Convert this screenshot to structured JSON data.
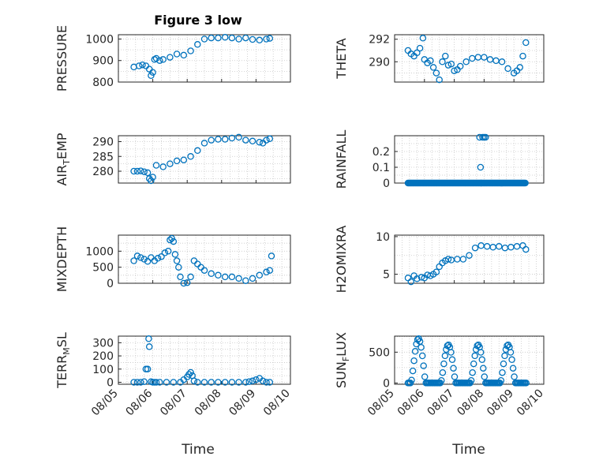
{
  "chart_data": {
    "type": "scatter",
    "title": "Figure 3 low",
    "colors": {
      "marker": "#0072bd",
      "axis": "#262626",
      "grid": "#c8c8c8"
    },
    "x_axis": {
      "label": "Time",
      "tick_labels": [
        "08/05",
        "08/06",
        "08/07",
        "08/08",
        "08/09",
        "08/10"
      ],
      "range_days": [
        0,
        5
      ],
      "note_units": "days after 08/05 00:00"
    },
    "subplots": [
      {
        "id": "pressure",
        "ylabel": "PRESSURE",
        "ylabel_sub": "",
        "ylim": [
          800,
          1020
        ],
        "yticks": [
          800,
          900,
          1000
        ],
        "ytick_labels": [
          "800",
          "900",
          "1000"
        ],
        "x": [
          0.45,
          0.6,
          0.7,
          0.8,
          0.9,
          0.95,
          1.0,
          1.05,
          1.1,
          1.2,
          1.3,
          1.5,
          1.7,
          1.9,
          2.1,
          2.3,
          2.5,
          2.7,
          2.9,
          3.1,
          3.3,
          3.5,
          3.7,
          3.9,
          4.1,
          4.3,
          4.4
        ],
        "y": [
          870,
          875,
          880,
          875,
          860,
          830,
          845,
          905,
          910,
          900,
          905,
          915,
          930,
          925,
          945,
          975,
          1000,
          1005,
          1005,
          1008,
          1005,
          1000,
          1005,
          998,
          995,
          1000,
          1003
        ]
      },
      {
        "id": "theta",
        "ylabel": "THETA",
        "ylabel_sub": "",
        "ylim": [
          288.2,
          292.4
        ],
        "yticks": [
          290,
          292
        ],
        "ytick_labels": [
          "290",
          "292"
        ],
        "x": [
          0.45,
          0.55,
          0.65,
          0.75,
          0.85,
          0.95,
          1.0,
          1.1,
          1.2,
          1.3,
          1.4,
          1.5,
          1.6,
          1.7,
          1.8,
          1.9,
          2.0,
          2.1,
          2.2,
          2.4,
          2.6,
          2.8,
          3.0,
          3.2,
          3.4,
          3.6,
          3.8,
          4.0,
          4.1,
          4.2,
          4.3,
          4.4
        ],
        "y": [
          291.0,
          290.7,
          290.5,
          290.8,
          291.2,
          292.1,
          290.2,
          289.9,
          290.1,
          289.5,
          289.0,
          288.4,
          290.0,
          290.5,
          289.7,
          289.8,
          289.2,
          289.3,
          289.6,
          290.0,
          290.3,
          290.4,
          290.4,
          290.2,
          290.1,
          290.0,
          289.4,
          289.0,
          289.2,
          289.5,
          290.5,
          291.7
        ]
      },
      {
        "id": "air_temp",
        "ylabel": "AIR",
        "ylabel_sub": "T",
        "ylabel_suffix": "EMP",
        "ylim": [
          276,
          292
        ],
        "yticks": [
          280,
          285,
          290
        ],
        "ytick_labels": [
          "280",
          "285",
          "290"
        ],
        "x": [
          0.45,
          0.55,
          0.65,
          0.75,
          0.85,
          0.9,
          0.95,
          1.0,
          1.1,
          1.3,
          1.5,
          1.7,
          1.9,
          2.1,
          2.3,
          2.5,
          2.7,
          2.9,
          3.1,
          3.3,
          3.5,
          3.7,
          3.9,
          4.1,
          4.2,
          4.3,
          4.4
        ],
        "y": [
          280.0,
          280.0,
          280.1,
          279.8,
          279.5,
          277.5,
          276.8,
          278.0,
          282.0,
          281.5,
          282.5,
          283.5,
          283.8,
          285.0,
          287.0,
          289.5,
          290.5,
          290.8,
          290.8,
          291.2,
          291.5,
          290.5,
          290.2,
          289.8,
          289.5,
          290.5,
          291.0
        ]
      },
      {
        "id": "rainfall",
        "ylabel": "RAINFALL",
        "ylabel_sub": "",
        "ylim": [
          0,
          0.3
        ],
        "yticks": [
          0,
          0.1,
          0.2
        ],
        "ytick_labels": [
          "0",
          "0.1",
          "0.2"
        ],
        "x_range_zero": [
          0.45,
          4.4
        ],
        "x": [
          2.85,
          2.88,
          2.95,
          3.0,
          3.05,
          2.9
        ],
        "y": [
          0.29,
          0.1,
          0.29,
          0.29,
          0.29,
          0.0
        ]
      },
      {
        "id": "mixdepth",
        "ylabel": "MIXDEPTH",
        "ylabel_sub": "",
        "ylim": [
          0,
          1500
        ],
        "yticks": [
          0,
          500,
          1000
        ],
        "ytick_labels": [
          "0",
          "500",
          "1000"
        ],
        "x": [
          0.45,
          0.55,
          0.65,
          0.75,
          0.85,
          0.95,
          1.05,
          1.15,
          1.25,
          1.35,
          1.45,
          1.5,
          1.55,
          1.6,
          1.65,
          1.7,
          1.75,
          1.8,
          1.9,
          2.0,
          2.1,
          2.2,
          2.3,
          2.4,
          2.5,
          2.7,
          2.9,
          3.1,
          3.3,
          3.5,
          3.7,
          3.9,
          4.1,
          4.3,
          4.4,
          4.45
        ],
        "y": [
          700,
          850,
          800,
          750,
          680,
          800,
          700,
          780,
          830,
          950,
          1000,
          1350,
          1400,
          1300,
          900,
          700,
          500,
          200,
          0,
          20,
          200,
          700,
          600,
          500,
          400,
          300,
          250,
          200,
          200,
          150,
          80,
          150,
          250,
          350,
          400,
          850
        ]
      },
      {
        "id": "h2omixra",
        "ylabel": "H2OMIXRA",
        "ylabel_sub": "",
        "ylim": [
          3.8,
          10.2
        ],
        "yticks": [
          5,
          10
        ],
        "ytick_labels": [
          "5",
          "10"
        ],
        "x": [
          0.45,
          0.55,
          0.65,
          0.75,
          0.9,
          1.0,
          1.1,
          1.2,
          1.3,
          1.4,
          1.5,
          1.6,
          1.7,
          1.8,
          1.9,
          2.1,
          2.3,
          2.5,
          2.7,
          2.9,
          3.1,
          3.3,
          3.5,
          3.7,
          3.9,
          4.1,
          4.3,
          4.4
        ],
        "y": [
          4.5,
          4.0,
          4.8,
          4.4,
          4.6,
          4.5,
          4.9,
          4.8,
          5.0,
          5.3,
          6.0,
          6.5,
          6.8,
          7.0,
          6.9,
          7.0,
          7.0,
          7.5,
          8.5,
          8.8,
          8.7,
          8.6,
          8.7,
          8.5,
          8.6,
          8.7,
          8.8,
          8.3
        ]
      },
      {
        "id": "terr_msl",
        "ylabel": "TERR",
        "ylabel_sub": "M",
        "ylabel_suffix": "SL",
        "ylim": [
          -15,
          350
        ],
        "yticks": [
          0,
          100,
          200,
          300
        ],
        "ytick_labels": [
          "0",
          "100",
          "200",
          "300"
        ],
        "x": [
          0.45,
          0.55,
          0.65,
          0.75,
          0.8,
          0.85,
          0.88,
          0.9,
          0.95,
          1.0,
          1.05,
          1.1,
          1.2,
          1.4,
          1.6,
          1.8,
          1.9,
          2.0,
          2.05,
          2.1,
          2.15,
          2.2,
          2.3,
          2.5,
          2.7,
          2.9,
          3.1,
          3.3,
          3.5,
          3.7,
          3.8,
          3.9,
          4.0,
          4.1,
          4.2,
          4.3,
          4.4
        ],
        "y": [
          0,
          0,
          0,
          5,
          100,
          100,
          330,
          270,
          5,
          0,
          0,
          0,
          0,
          0,
          0,
          0,
          20,
          40,
          60,
          75,
          50,
          10,
          0,
          0,
          0,
          0,
          0,
          0,
          0,
          0,
          5,
          10,
          20,
          30,
          10,
          0,
          0
        ]
      },
      {
        "id": "sun_flux",
        "ylabel": "SUN",
        "ylabel_sub": "F",
        "ylabel_suffix": "LUX",
        "ylim": [
          -20,
          760
        ],
        "yticks": [
          0,
          500
        ],
        "ytick_labels": [
          "0",
          "500"
        ],
        "diurnal": {
          "start": 0.45,
          "end": 4.45,
          "peak": 620,
          "first_peak": 720
        }
      }
    ]
  }
}
